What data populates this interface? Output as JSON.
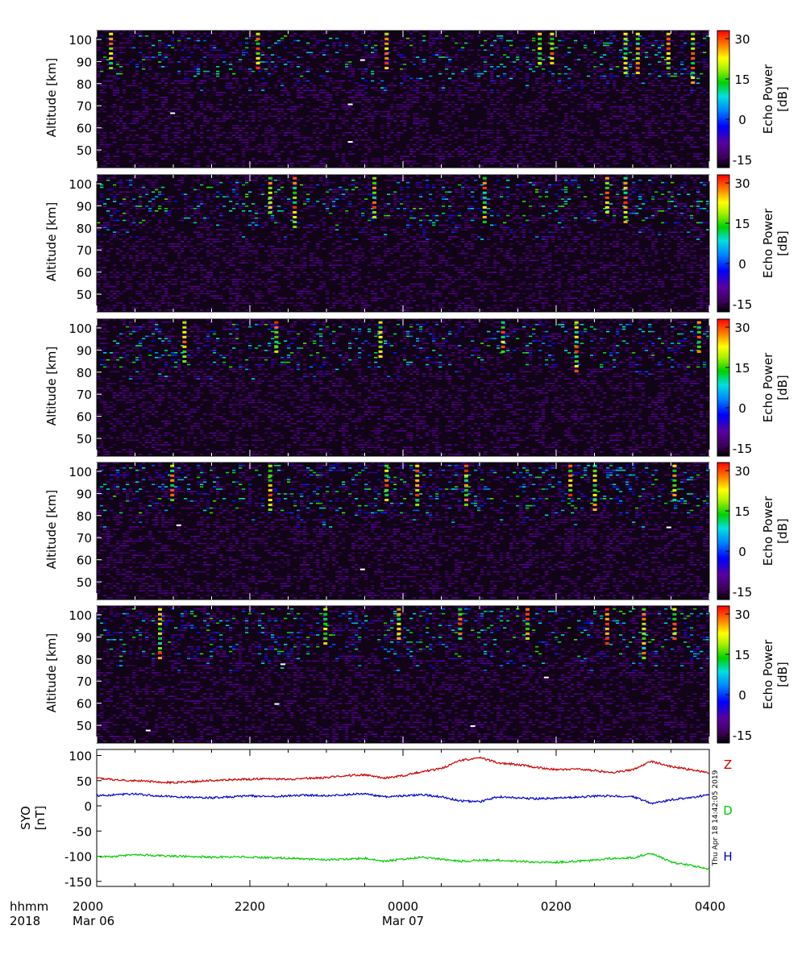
{
  "chart_data": [
    {
      "type": "heatmap",
      "panel": 1,
      "ylabel": "Altitude [km]",
      "yticks": [
        50,
        60,
        70,
        80,
        90,
        100
      ],
      "ylim": [
        42,
        104
      ],
      "colorbar": {
        "label_line1": "Echo Power",
        "label_line2": "[dB]",
        "ticks": [
          30,
          15,
          0,
          -15
        ],
        "range": [
          -18,
          33
        ]
      },
      "dominant_echo_altitude_km": [
        82,
        102
      ],
      "seed": 11,
      "bright_columns_time_fraction": [
        0.02,
        0.26,
        0.47,
        0.72,
        0.74,
        0.86,
        0.88,
        0.93,
        0.97
      ],
      "white_specks": [
        [
          0.12,
          67
        ],
        [
          0.41,
          71
        ],
        [
          0.43,
          91
        ],
        [
          0.41,
          54
        ]
      ]
    },
    {
      "type": "heatmap",
      "panel": 2,
      "ylabel": "Altitude [km]",
      "yticks": [
        50,
        60,
        70,
        80,
        90,
        100
      ],
      "ylim": [
        42,
        104
      ],
      "colorbar": {
        "label_line1": "Echo Power",
        "label_line2": "[dB]",
        "ticks": [
          30,
          15,
          0,
          -15
        ],
        "range": [
          -18,
          33
        ]
      },
      "dominant_echo_altitude_km": [
        80,
        102
      ],
      "seed": 23,
      "bright_columns_time_fraction": [
        0.28,
        0.32,
        0.45,
        0.63,
        0.83,
        0.86
      ],
      "white_specks": []
    },
    {
      "type": "heatmap",
      "panel": 3,
      "ylabel": "Altitude [km]",
      "yticks": [
        50,
        60,
        70,
        80,
        90,
        100
      ],
      "ylim": [
        42,
        104
      ],
      "colorbar": {
        "label_line1": "Echo Power",
        "label_line2": "[dB]",
        "ticks": [
          30,
          15,
          0,
          -15
        ],
        "range": [
          -18,
          33
        ]
      },
      "dominant_echo_altitude_km": [
        82,
        102
      ],
      "seed": 37,
      "bright_columns_time_fraction": [
        0.14,
        0.29,
        0.46,
        0.66,
        0.78,
        0.98
      ],
      "white_specks": []
    },
    {
      "type": "heatmap",
      "panel": 4,
      "ylabel": "Altitude [km]",
      "yticks": [
        50,
        60,
        70,
        80,
        90,
        100
      ],
      "ylim": [
        42,
        104
      ],
      "colorbar": {
        "label_line1": "Echo Power",
        "label_line2": "[dB]",
        "ticks": [
          30,
          15,
          0,
          -15
        ],
        "range": [
          -18,
          33
        ]
      },
      "dominant_echo_altitude_km": [
        80,
        103
      ],
      "seed": 53,
      "bright_columns_time_fraction": [
        0.12,
        0.28,
        0.47,
        0.52,
        0.6,
        0.77,
        0.81,
        0.94
      ],
      "white_specks": [
        [
          0.13,
          76
        ],
        [
          0.43,
          56
        ],
        [
          0.93,
          75
        ]
      ]
    },
    {
      "type": "heatmap",
      "panel": 5,
      "ylabel": "Altitude [km]",
      "yticks": [
        50,
        60,
        70,
        80,
        90,
        100
      ],
      "ylim": [
        42,
        104
      ],
      "colorbar": {
        "label_line1": "Echo Power",
        "label_line2": "[dB]",
        "ticks": [
          30,
          15,
          0,
          -15
        ],
        "range": [
          -18,
          33
        ]
      },
      "dominant_echo_altitude_km": [
        80,
        103
      ],
      "seed": 71,
      "bright_columns_time_fraction": [
        0.1,
        0.37,
        0.49,
        0.59,
        0.7,
        0.83,
        0.89,
        0.94
      ],
      "white_specks": [
        [
          0.3,
          78
        ],
        [
          0.29,
          60
        ],
        [
          0.08,
          48
        ],
        [
          0.73,
          72
        ],
        [
          0.61,
          50
        ]
      ]
    },
    {
      "type": "line",
      "ylabel_line1": "SYO",
      "ylabel_line2": "[nT]",
      "yticks": [
        100,
        50,
        0,
        -50,
        -100,
        -150
      ],
      "ylim": [
        -160,
        112
      ],
      "x_unit": "hours since 2018-03-06 20:00 UT",
      "series": [
        {
          "name": "Z",
          "color": "#cc0000",
          "x": [
            0,
            0.25,
            0.5,
            0.75,
            1.0,
            1.25,
            1.5,
            1.75,
            2.0,
            2.25,
            2.5,
            2.75,
            3.0,
            3.25,
            3.5,
            3.75,
            4.0,
            4.25,
            4.5,
            4.75,
            5.0,
            5.25,
            5.5,
            5.75,
            6.0,
            6.25,
            6.5,
            6.75,
            7.0,
            7.25,
            7.5,
            7.75,
            8.0
          ],
          "y": [
            55,
            52,
            50,
            48,
            46,
            48,
            50,
            52,
            53,
            54,
            52,
            55,
            56,
            60,
            62,
            55,
            60,
            68,
            74,
            90,
            96,
            85,
            82,
            76,
            72,
            73,
            70,
            66,
            72,
            88,
            78,
            72,
            66
          ]
        },
        {
          "name": "D",
          "color": "#00cc00",
          "x": [
            0,
            0.25,
            0.5,
            0.75,
            1.0,
            1.25,
            1.5,
            1.75,
            2.0,
            2.25,
            2.5,
            2.75,
            3.0,
            3.25,
            3.5,
            3.75,
            4.0,
            4.25,
            4.5,
            4.75,
            5.0,
            5.25,
            5.5,
            5.75,
            6.0,
            6.25,
            6.5,
            6.75,
            7.0,
            7.25,
            7.5,
            7.75,
            8.0
          ],
          "y": [
            -102,
            -100,
            -97,
            -99,
            -100,
            -101,
            -102,
            -101,
            -102,
            -103,
            -104,
            -106,
            -107,
            -106,
            -104,
            -110,
            -106,
            -102,
            -106,
            -110,
            -108,
            -108,
            -110,
            -112,
            -112,
            -110,
            -108,
            -104,
            -103,
            -94,
            -112,
            -118,
            -126
          ]
        },
        {
          "name": "H",
          "color": "#0000cc",
          "x": [
            0,
            0.25,
            0.5,
            0.75,
            1.0,
            1.25,
            1.5,
            1.75,
            2.0,
            2.25,
            2.5,
            2.75,
            3.0,
            3.25,
            3.5,
            3.75,
            4.0,
            4.25,
            4.5,
            4.75,
            5.0,
            5.25,
            5.5,
            5.75,
            6.0,
            6.25,
            6.5,
            6.75,
            7.0,
            7.25,
            7.5,
            7.75,
            8.0
          ],
          "y": [
            20,
            22,
            24,
            20,
            18,
            17,
            16,
            18,
            20,
            18,
            20,
            21,
            20,
            22,
            24,
            18,
            20,
            22,
            18,
            10,
            8,
            18,
            16,
            14,
            15,
            17,
            19,
            20,
            18,
            5,
            12,
            16,
            22
          ]
        }
      ],
      "legend": [
        "Z",
        "D",
        "H"
      ],
      "side_annotation": "Thu Apr 18 14:42:05 2019"
    }
  ],
  "time_axis": {
    "row1_label": "hhmm",
    "row2_label": "2018",
    "ticks": [
      {
        "hhmm": "2000",
        "date": "Mar 06"
      },
      {
        "hhmm": "2200",
        "date": ""
      },
      {
        "hhmm": "0000",
        "date": "Mar 07"
      },
      {
        "hhmm": "0200",
        "date": ""
      },
      {
        "hhmm": "0400",
        "date": ""
      }
    ],
    "minor_ticks_per_major": 4
  }
}
